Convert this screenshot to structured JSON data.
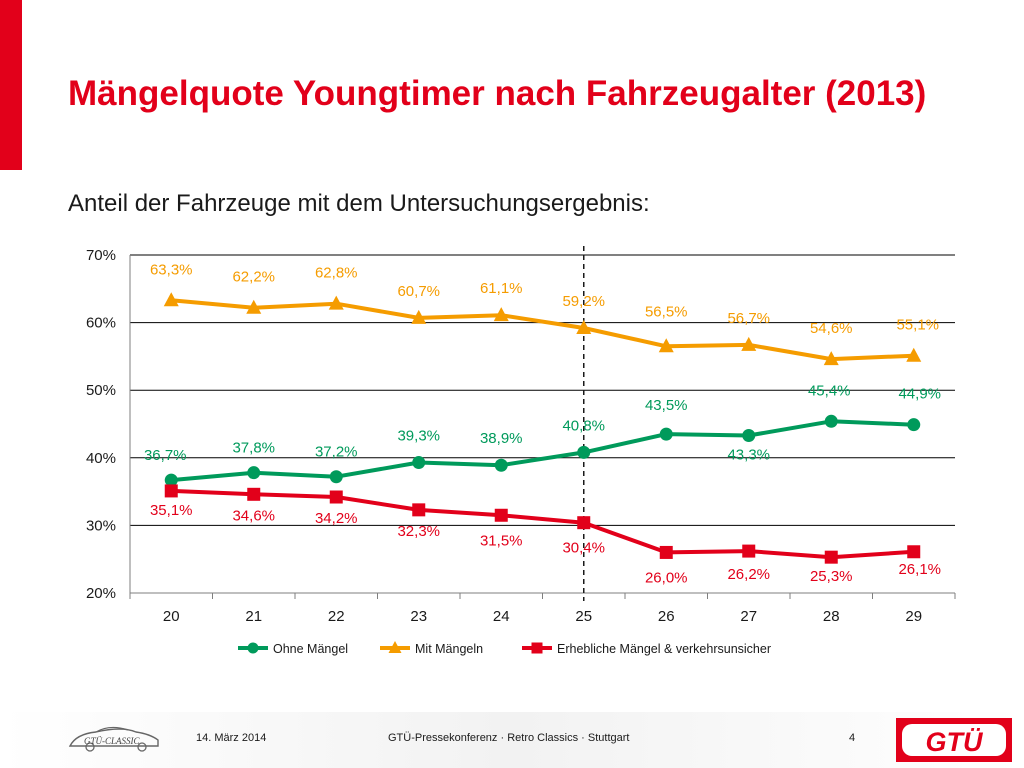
{
  "slide": {
    "title": "Mängelquote Youngtimer nach Fahrzeugalter (2013)",
    "subtitle": "Anteil der Fahrzeuge mit dem Untersuchungsergebnis:"
  },
  "footer": {
    "date": "14. März 2014",
    "event": "GTÜ-Pressekonferenz · Retro Classics · Stuttgart",
    "page": "4",
    "brand_logo_text": "GTÜ",
    "classic_logo_text": "GTÜ-CLASSIC"
  },
  "colors": {
    "accent": "#e2001a",
    "green": "#009a5b",
    "orange": "#f59c00",
    "red": "#e2001a"
  },
  "chart_data": {
    "type": "line",
    "x": [
      "20",
      "21",
      "22",
      "23",
      "24",
      "25",
      "26",
      "27",
      "28",
      "29"
    ],
    "ylim": [
      20,
      70
    ],
    "yticks": [
      20,
      30,
      40,
      50,
      60,
      70
    ],
    "ytick_labels": [
      "20%",
      "30%",
      "40%",
      "50%",
      "60%",
      "70%"
    ],
    "grid": true,
    "legend_position": "bottom",
    "reference_line_x": "25",
    "series": [
      {
        "name": "Ohne Mängel",
        "color": "#009a5b",
        "marker": "circle",
        "values": [
          36.7,
          37.8,
          37.2,
          39.3,
          38.9,
          40.8,
          43.5,
          43.3,
          45.4,
          44.9
        ],
        "labels": [
          "36,7%",
          "37,8%",
          "37,2%",
          "39,3%",
          "38,9%",
          "40,8%",
          "43,5%",
          "43,3%",
          "45,4%",
          "44,9%"
        ]
      },
      {
        "name": "Mit Mängeln",
        "color": "#f59c00",
        "marker": "triangle",
        "values": [
          63.3,
          62.2,
          62.8,
          60.7,
          61.1,
          59.2,
          56.5,
          56.7,
          54.6,
          55.1
        ],
        "labels": [
          "63,3%",
          "62,2%",
          "62,8%",
          "60,7%",
          "61,1%",
          "59,2%",
          "56,5%",
          "56,7%",
          "54,6%",
          "55,1%"
        ]
      },
      {
        "name": "Erhebliche Mängel & verkehrsunsicher",
        "color": "#e2001a",
        "marker": "square",
        "values": [
          35.1,
          34.6,
          34.2,
          32.3,
          31.5,
          30.4,
          26.0,
          26.2,
          25.3,
          26.1
        ],
        "labels": [
          "35,1%",
          "34,6%",
          "34,2%",
          "32,3%",
          "31,5%",
          "30,4%",
          "26,0%",
          "26,2%",
          "25,3%",
          "26,1%"
        ]
      }
    ]
  }
}
